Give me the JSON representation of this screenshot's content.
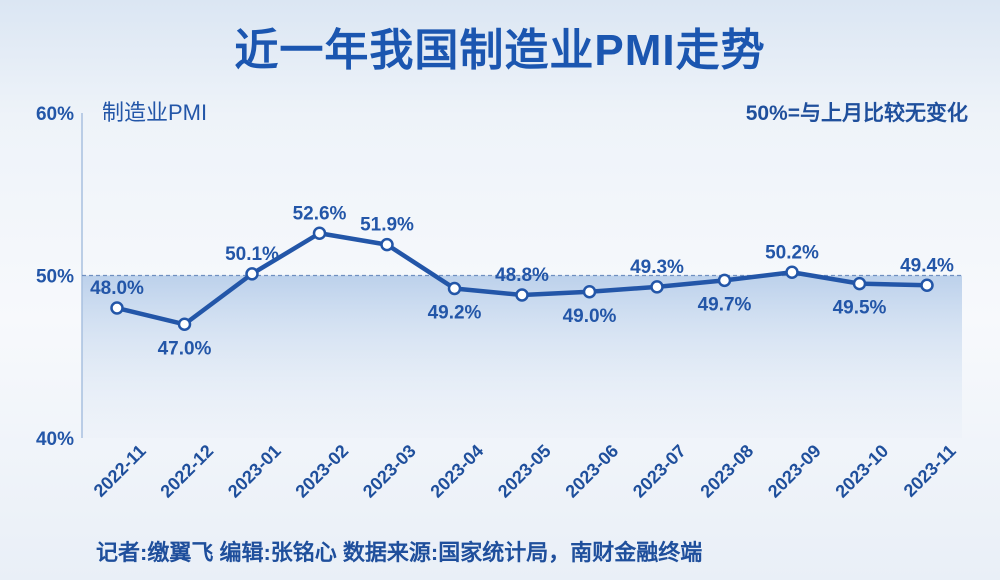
{
  "title": "近一年我国制造业PMI走势",
  "footer": "记者:缴翼飞  编辑:张铭心   数据来源:国家统计局，南财金融终端",
  "colors": {
    "line": "#2356a8",
    "threshold_fill": "#a9c4e6",
    "axis": "#a8c0df"
  },
  "chart_data": {
    "type": "line",
    "title": "近一年我国制造业PMI走势",
    "series_label": "制造业PMI",
    "note": "50%=与上月比较无变化",
    "categories": [
      "2022-11",
      "2022-12",
      "2023-01",
      "2023-02",
      "2023-03",
      "2023-04",
      "2023-05",
      "2023-06",
      "2023-07",
      "2023-08",
      "2023-09",
      "2023-10",
      "2023-11"
    ],
    "values": [
      48.0,
      47.0,
      50.1,
      52.6,
      51.9,
      49.2,
      48.8,
      49.0,
      49.3,
      49.7,
      50.2,
      49.5,
      49.4
    ],
    "value_labels": [
      "48.0%",
      "47.0%",
      "50.1%",
      "52.6%",
      "51.9%",
      "49.2%",
      "48.8%",
      "49.0%",
      "49.3%",
      "49.7%",
      "50.2%",
      "49.5%",
      "49.4%"
    ],
    "label_positions": [
      "above",
      "below",
      "above",
      "above",
      "above",
      "below",
      "above",
      "below",
      "above",
      "below",
      "above",
      "below",
      "above"
    ],
    "yticks": [
      40,
      50,
      60
    ],
    "ytick_labels": [
      "40%",
      "50%",
      "60%"
    ],
    "ylim": [
      40,
      60
    ],
    "reference_line": 50,
    "grid": false
  }
}
